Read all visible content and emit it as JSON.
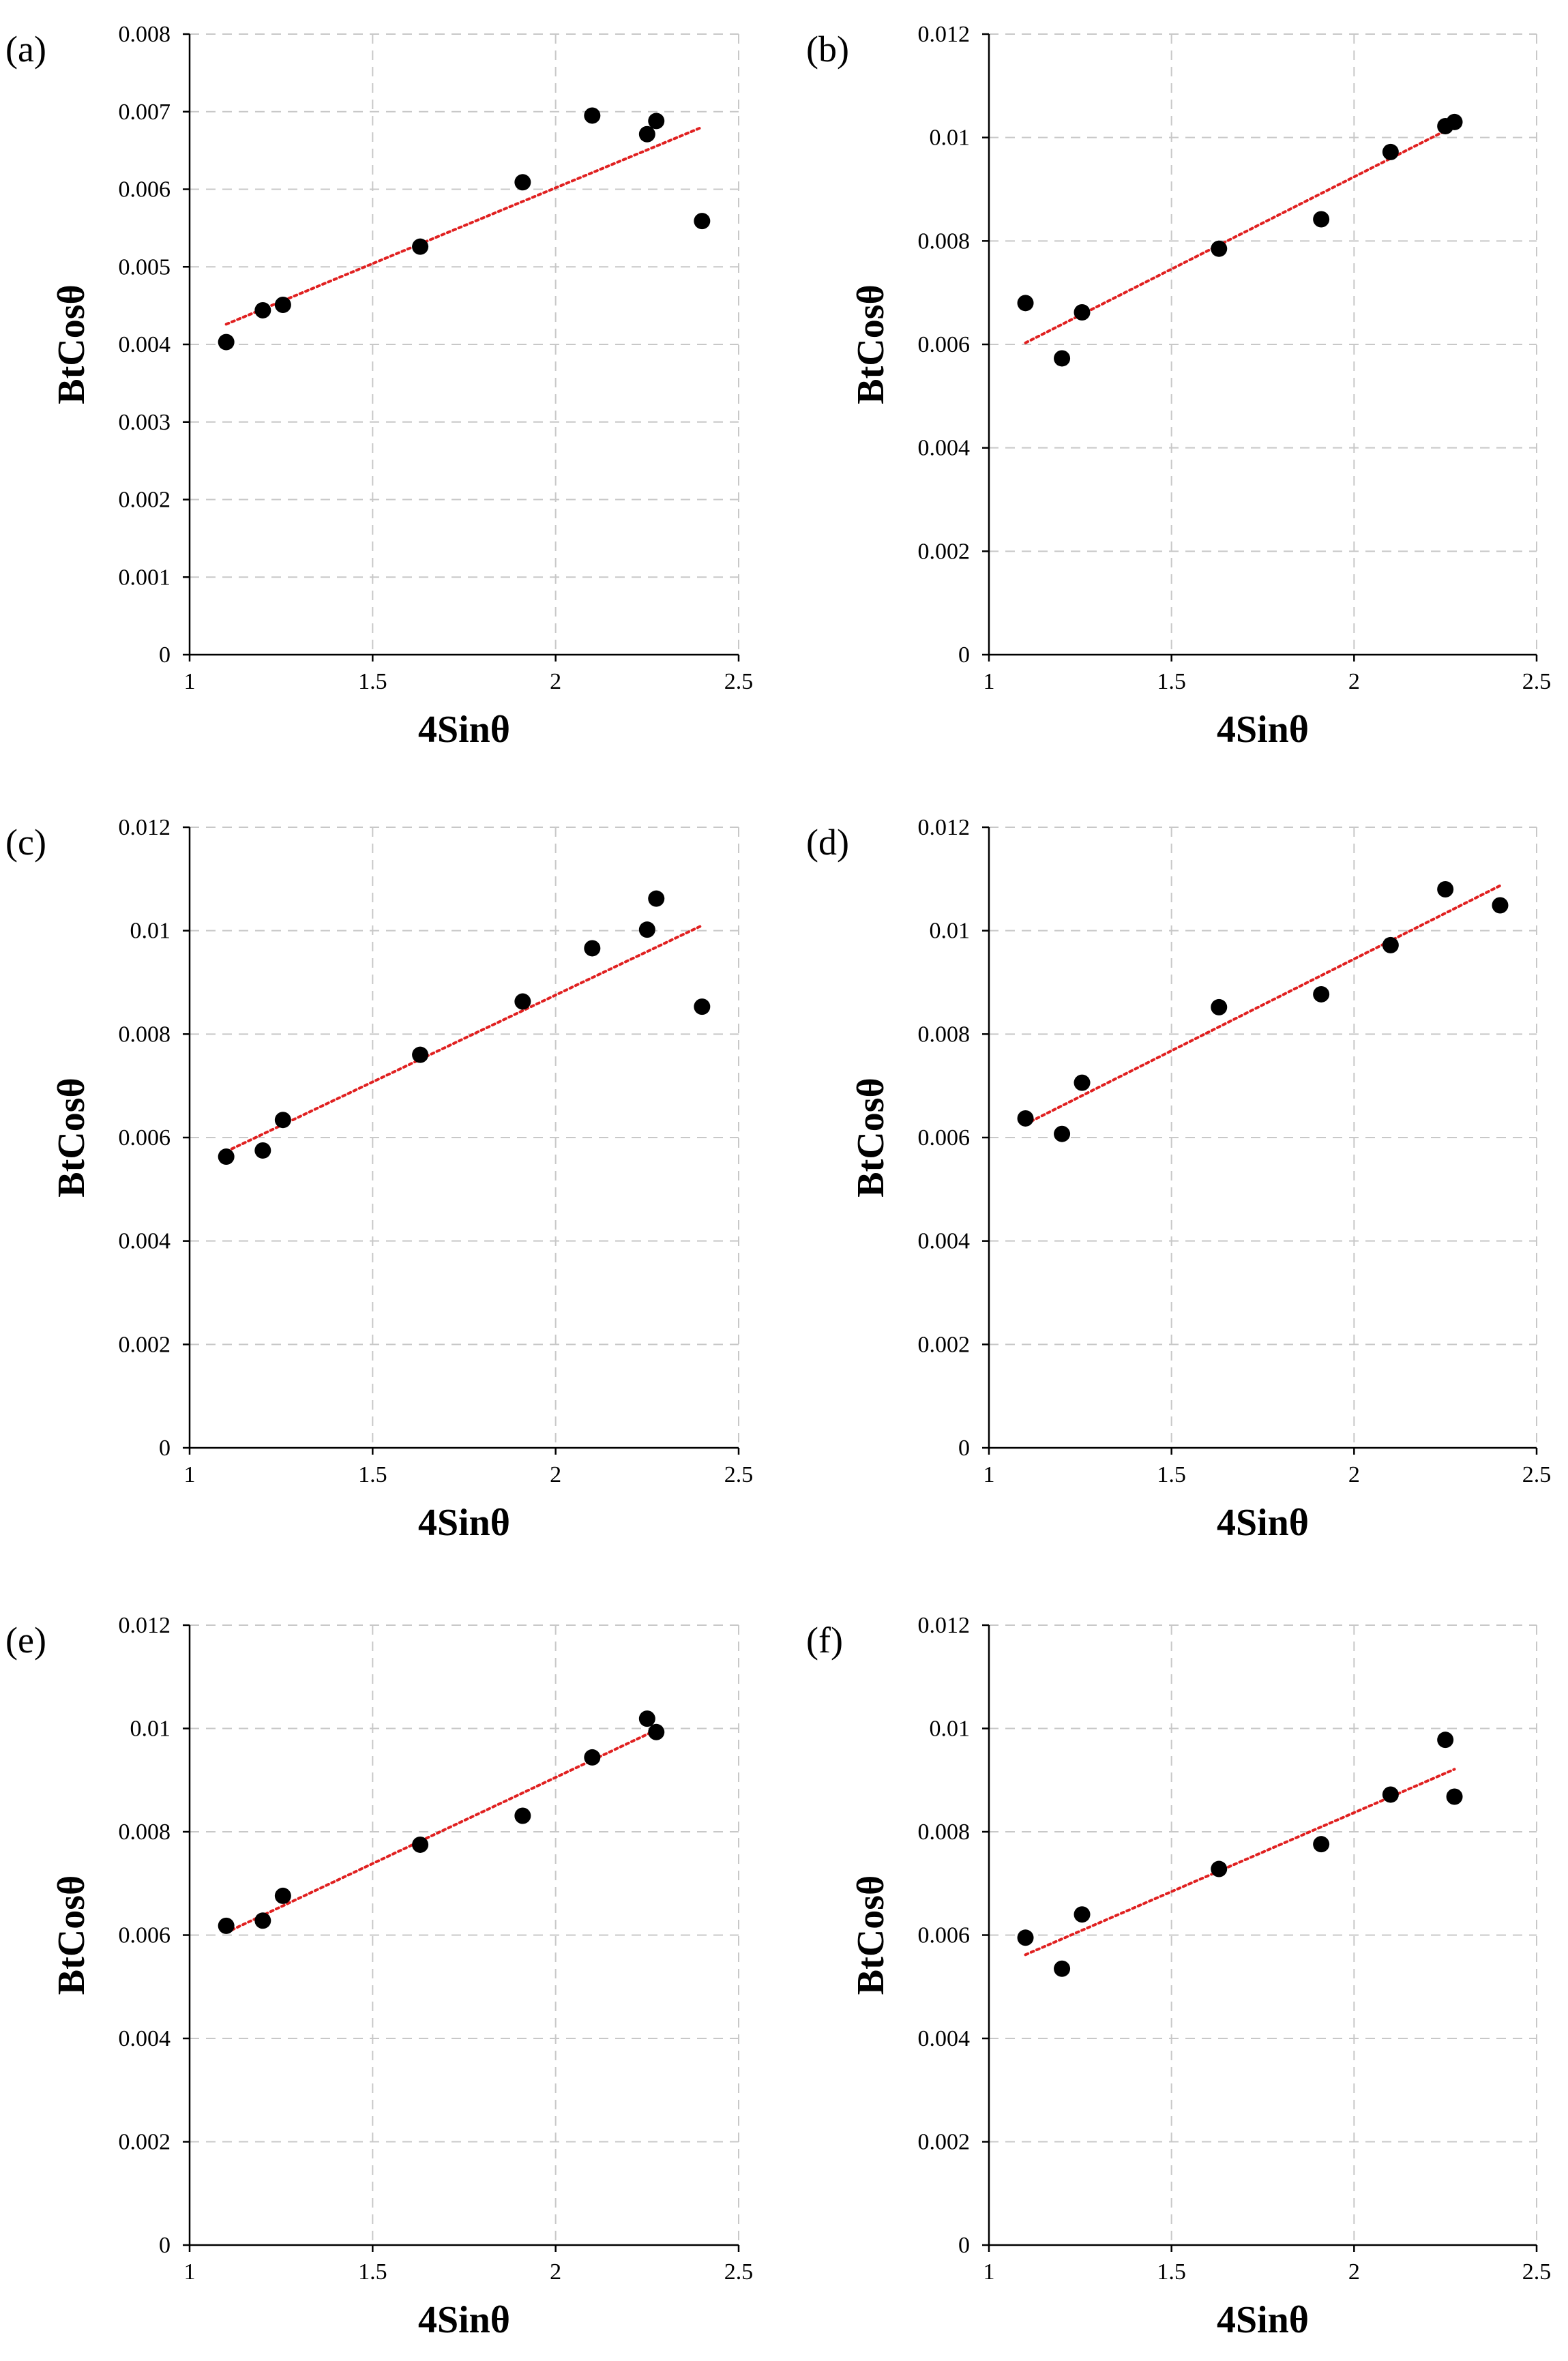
{
  "figure": {
    "colors": {
      "marker": "#000000",
      "trendline": "#e02020",
      "grid": "#c8c8c8",
      "axis": "#000000"
    }
  },
  "chart_data": [
    {
      "panel": "(a)",
      "type": "scatter",
      "xlabel": "4Sinθ",
      "ylabel": "BtCosθ",
      "xlim": [
        1,
        2.5
      ],
      "ylim": [
        0,
        0.008
      ],
      "x_ticks": [
        "1",
        "1.5",
        "2",
        "2.5"
      ],
      "y_ticks": [
        "0",
        "0.001",
        "0.002",
        "0.003",
        "0.004",
        "0.005",
        "0.006",
        "0.007",
        "0.008"
      ],
      "points": [
        [
          1.1,
          0.00403
        ],
        [
          1.2,
          0.00444
        ],
        [
          1.255,
          0.00451
        ],
        [
          1.63,
          0.00526
        ],
        [
          1.91,
          0.00609
        ],
        [
          2.1,
          0.00695
        ],
        [
          2.25,
          0.00671
        ],
        [
          2.275,
          0.00688
        ],
        [
          2.4,
          0.00559
        ]
      ],
      "trendline": {
        "x": [
          1.1,
          2.4
        ],
        "y": [
          0.00426,
          0.0068
        ]
      },
      "grid": true
    },
    {
      "panel": "(b)",
      "type": "scatter",
      "xlabel": "4Sinθ",
      "ylabel": "BtCosθ",
      "xlim": [
        1,
        2.5
      ],
      "ylim": [
        0,
        0.012
      ],
      "x_ticks": [
        "1",
        "1.5",
        "2",
        "2.5"
      ],
      "y_ticks": [
        "0",
        "0.002",
        "0.004",
        "0.006",
        "0.008",
        "0.01",
        "0.012"
      ],
      "points": [
        [
          1.1,
          0.0068
        ],
        [
          1.2,
          0.00573
        ],
        [
          1.255,
          0.00662
        ],
        [
          1.63,
          0.00785
        ],
        [
          1.91,
          0.00842
        ],
        [
          2.1,
          0.00972
        ],
        [
          2.25,
          0.01022
        ],
        [
          2.275,
          0.0103
        ]
      ],
      "trendline": {
        "x": [
          1.1,
          2.275
        ],
        "y": [
          0.00603,
          0.01022
        ]
      },
      "grid": true
    },
    {
      "panel": "(c)",
      "type": "scatter",
      "xlabel": "4Sinθ",
      "ylabel": "BtCosθ",
      "xlim": [
        1,
        2.5
      ],
      "ylim": [
        0,
        0.012
      ],
      "x_ticks": [
        "1",
        "1.5",
        "2",
        "2.5"
      ],
      "y_ticks": [
        "0",
        "0.002",
        "0.004",
        "0.006",
        "0.008",
        "0.01",
        "0.012"
      ],
      "points": [
        [
          1.1,
          0.00563
        ],
        [
          1.2,
          0.00575
        ],
        [
          1.255,
          0.00634
        ],
        [
          1.63,
          0.0076
        ],
        [
          1.91,
          0.00863
        ],
        [
          2.1,
          0.00966
        ],
        [
          2.25,
          0.01002
        ],
        [
          2.275,
          0.01062
        ],
        [
          2.4,
          0.00853
        ]
      ],
      "trendline": {
        "x": [
          1.1,
          2.4
        ],
        "y": [
          0.00573,
          0.0101
        ]
      },
      "grid": true
    },
    {
      "panel": "(d)",
      "type": "scatter",
      "xlabel": "4Sinθ",
      "ylabel": "BtCosθ",
      "xlim": [
        1,
        2.5
      ],
      "ylim": [
        0,
        0.012
      ],
      "x_ticks": [
        "1",
        "1.5",
        "2",
        "2.5"
      ],
      "y_ticks": [
        "0",
        "0.002",
        "0.004",
        "0.006",
        "0.008",
        "0.01",
        "0.012"
      ],
      "points": [
        [
          1.1,
          0.00637
        ],
        [
          1.2,
          0.00607
        ],
        [
          1.255,
          0.00706
        ],
        [
          1.63,
          0.00852
        ],
        [
          1.91,
          0.00877
        ],
        [
          2.1,
          0.00972
        ],
        [
          2.25,
          0.0108
        ],
        [
          2.4,
          0.01049
        ]
      ],
      "trendline": {
        "x": [
          1.1,
          2.4
        ],
        "y": [
          0.00626,
          0.01087
        ]
      },
      "grid": true
    },
    {
      "panel": "(e)",
      "type": "scatter",
      "xlabel": "4Sinθ",
      "ylabel": "BtCosθ",
      "xlim": [
        1,
        2.5
      ],
      "ylim": [
        0,
        0.012
      ],
      "x_ticks": [
        "1",
        "1.5",
        "2",
        "2.5"
      ],
      "y_ticks": [
        "0",
        "0.002",
        "0.004",
        "0.006",
        "0.008",
        "0.01",
        "0.012"
      ],
      "points": [
        [
          1.1,
          0.00618
        ],
        [
          1.2,
          0.00628
        ],
        [
          1.255,
          0.00676
        ],
        [
          1.63,
          0.00775
        ],
        [
          1.91,
          0.00831
        ],
        [
          2.1,
          0.00944
        ],
        [
          2.25,
          0.01019
        ],
        [
          2.275,
          0.00993
        ]
      ],
      "trendline": {
        "x": [
          1.1,
          2.275
        ],
        "y": [
          0.00605,
          0.00997
        ]
      },
      "grid": true
    },
    {
      "panel": "(f)",
      "type": "scatter",
      "xlabel": "4Sinθ",
      "ylabel": "BtCosθ",
      "xlim": [
        1,
        2.5
      ],
      "ylim": [
        0,
        0.012
      ],
      "x_ticks": [
        "1",
        "1.5",
        "2",
        "2.5"
      ],
      "y_ticks": [
        "0",
        "0.002",
        "0.004",
        "0.006",
        "0.008",
        "0.01",
        "0.012"
      ],
      "points": [
        [
          1.1,
          0.00595
        ],
        [
          1.2,
          0.00535
        ],
        [
          1.255,
          0.0064
        ],
        [
          1.63,
          0.00728
        ],
        [
          1.91,
          0.00776
        ],
        [
          2.1,
          0.00872
        ],
        [
          2.25,
          0.00978
        ],
        [
          2.275,
          0.00868
        ]
      ],
      "trendline": {
        "x": [
          1.1,
          2.275
        ],
        "y": [
          0.00562,
          0.00921
        ]
      },
      "grid": true
    }
  ]
}
